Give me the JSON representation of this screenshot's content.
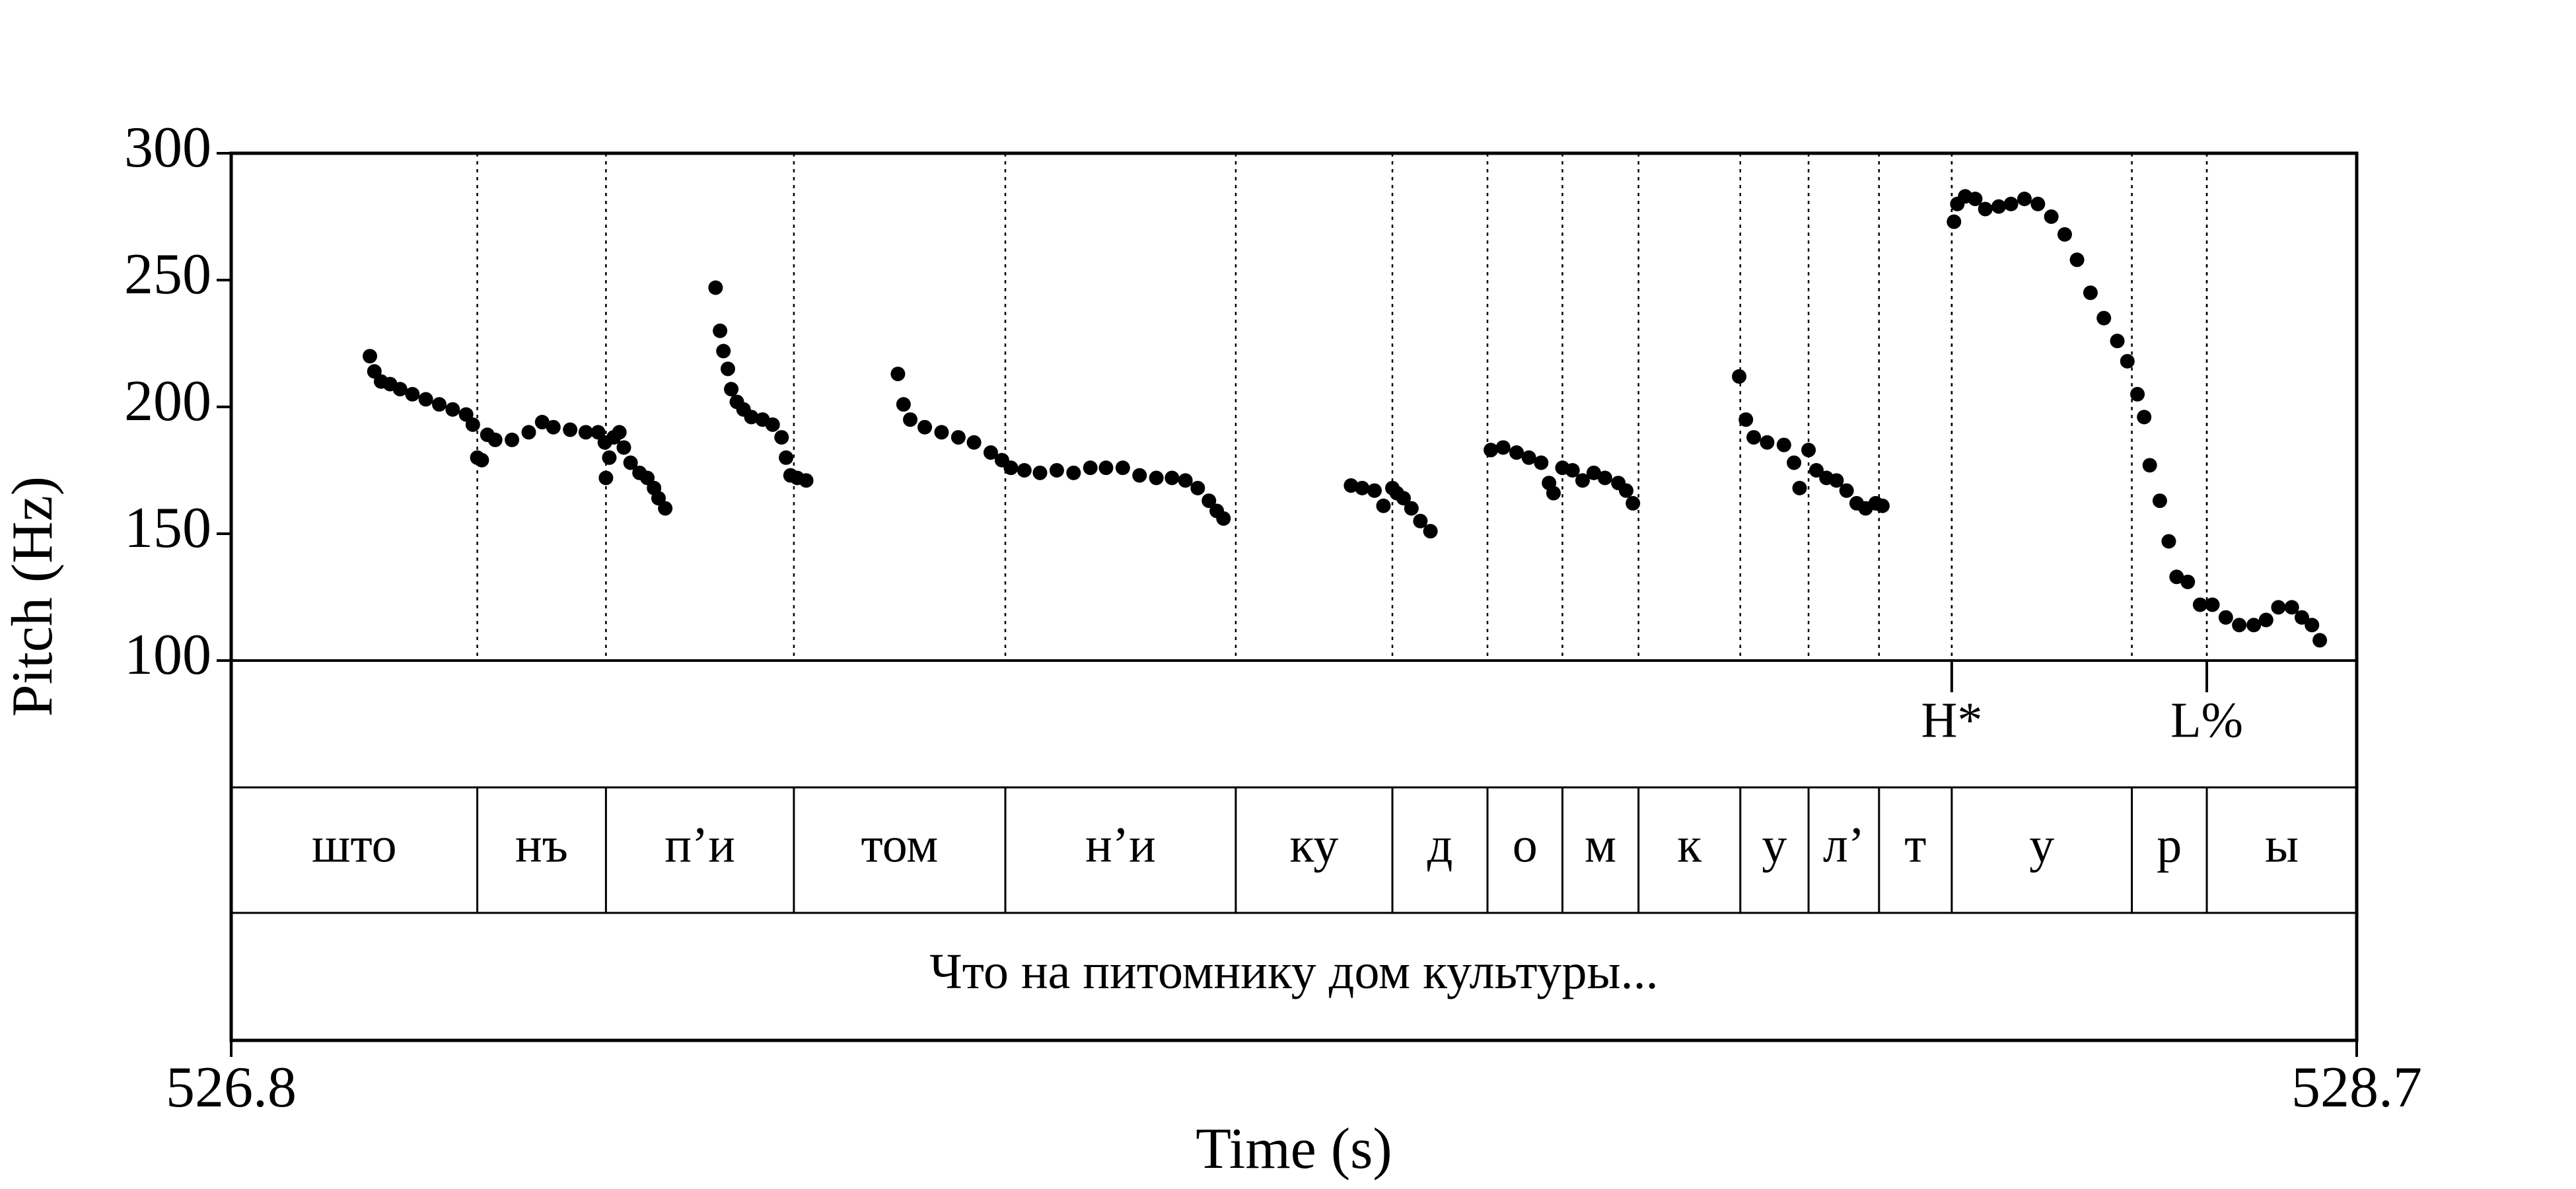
{
  "chart_data": {
    "type": "scatter",
    "xlabel": "Time (s)",
    "ylabel": "Pitch (Hz)",
    "color": "#000000",
    "xlim": [
      526.8,
      528.7
    ],
    "xticks": [
      526.8,
      528.7
    ],
    "ylim": [
      100,
      300
    ],
    "yticks": [
      100,
      150,
      200,
      250,
      300
    ],
    "x": [
      526.924,
      526.928,
      526.934,
      526.942,
      526.951,
      526.962,
      526.974,
      526.986,
      526.998,
      527.01,
      527.016,
      527.02,
      527.024,
      527.029,
      527.036,
      527.051,
      527.066,
      527.078,
      527.088,
      527.103,
      527.117,
      527.128,
      527.134,
      527.135,
      527.138,
      527.142,
      527.147,
      527.151,
      527.157,
      527.165,
      527.172,
      527.178,
      527.182,
      527.188,
      527.233,
      527.237,
      527.24,
      527.244,
      527.247,
      527.252,
      527.258,
      527.265,
      527.275,
      527.284,
      527.292,
      527.296,
      527.3,
      527.306,
      527.314,
      527.396,
      527.401,
      527.407,
      527.42,
      527.435,
      527.45,
      527.464,
      527.479,
      527.489,
      527.497,
      527.509,
      527.523,
      527.538,
      527.553,
      527.568,
      527.582,
      527.597,
      527.612,
      527.627,
      527.641,
      527.653,
      527.664,
      527.674,
      527.681,
      527.687,
      527.801,
      527.811,
      527.822,
      527.83,
      527.838,
      527.842,
      527.848,
      527.855,
      527.863,
      527.872,
      527.926,
      527.937,
      527.949,
      527.96,
      527.971,
      527.978,
      527.982,
      527.99,
      527.999,
      528.008,
      528.018,
      528.028,
      528.04,
      528.047,
      528.053,
      528.148,
      528.154,
      528.161,
      528.173,
      528.188,
      528.197,
      528.202,
      528.21,
      528.217,
      528.226,
      528.235,
      528.244,
      528.253,
      528.261,
      528.27,
      528.276,
      528.34,
      528.343,
      528.35,
      528.359,
      528.368,
      528.38,
      528.391,
      528.403,
      528.415,
      528.427,
      528.439,
      528.45,
      528.462,
      528.474,
      528.486,
      528.495,
      528.504,
      528.51,
      528.515,
      528.524,
      528.532,
      528.539,
      528.549,
      528.56,
      528.571,
      528.583,
      528.595,
      528.608,
      528.619,
      528.63,
      528.642,
      528.651,
      528.66,
      528.667
    ],
    "values": [
      220,
      214,
      210,
      209,
      207,
      205,
      203,
      201,
      199,
      197,
      193,
      180,
      179,
      189,
      187,
      187,
      190,
      194,
      192,
      191,
      190,
      190,
      186,
      172,
      180,
      188,
      190,
      184,
      178,
      174,
      172,
      168,
      164,
      160,
      247,
      230,
      222,
      215,
      207,
      202,
      199,
      196,
      195,
      193,
      188,
      180,
      173,
      172,
      171,
      213,
      201,
      195,
      192,
      190,
      188,
      186,
      182,
      179,
      176,
      175,
      174,
      175,
      174,
      176,
      176,
      176,
      173,
      172,
      172,
      171,
      168,
      163,
      159,
      156,
      169,
      168,
      167,
      161,
      168,
      166,
      164,
      160,
      155,
      151,
      183,
      184,
      182,
      180,
      178,
      170,
      166,
      176,
      175,
      171,
      174,
      172,
      170,
      167,
      162,
      212,
      195,
      188,
      186,
      185,
      178,
      168,
      183,
      175,
      172,
      171,
      167,
      162,
      160,
      162,
      161,
      273,
      280,
      283,
      282,
      278,
      279,
      280,
      282,
      280,
      275,
      268,
      258,
      245,
      235,
      226,
      218,
      205,
      196,
      177,
      163,
      147,
      133,
      131,
      122,
      122,
      117,
      114,
      114,
      116,
      121,
      121,
      117,
      114,
      108
    ],
    "tiers": {
      "tones": {
        "times": [
          528.338,
          528.566
        ],
        "labels": [
          "H*",
          "L%"
        ]
      },
      "segments": {
        "boundaries": [
          526.8,
          527.02,
          527.135,
          527.303,
          527.492,
          527.698,
          527.838,
          527.923,
          527.99,
          528.058,
          528.149,
          528.21,
          528.273,
          528.338,
          528.499,
          528.566,
          528.7
        ],
        "labels": [
          "што",
          "нъ",
          "п’и",
          "том",
          "н’и",
          "ку",
          "д",
          "о",
          "м",
          "к",
          "у",
          "л’",
          "т",
          "у",
          "р",
          "ы"
        ]
      },
      "text": {
        "label": "Что на питомнику дом культуры..."
      }
    }
  }
}
